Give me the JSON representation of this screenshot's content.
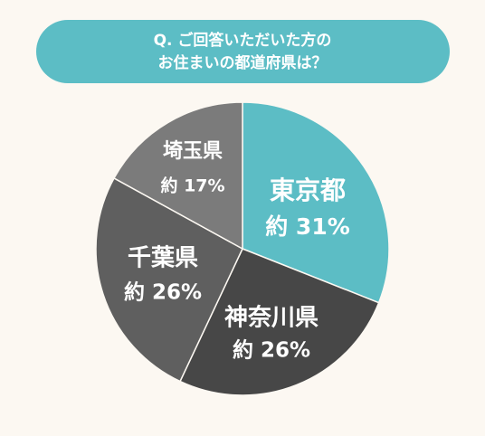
{
  "chart_data": {
    "type": "pie",
    "title": [
      "Q. ご回答いただいた方の",
      "お住まいの都道府県は？"
    ],
    "categories": [
      "東京都",
      "神奈川県",
      "千葉県",
      "埼玉県"
    ],
    "values": [
      31,
      26,
      26,
      17
    ],
    "value_labels": [
      "約 31%",
      "約 26%",
      "約 26%",
      "約 17%"
    ],
    "colors": [
      "#5cbdc5",
      "#474747",
      "#5f5f5f",
      "#7b7b7b"
    ]
  }
}
